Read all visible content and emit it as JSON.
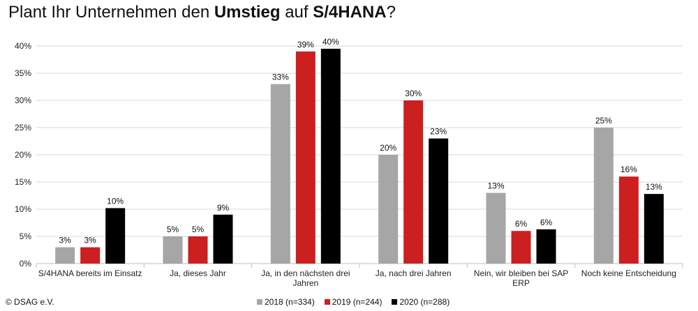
{
  "title": {
    "part1": "Plant Ihr Unternehmen den ",
    "bold1": "Umstieg",
    "part2": " auf ",
    "bold2": "S/4HANA",
    "part3": "?"
  },
  "copyright": "© DSAG e.V.",
  "chart_data": {
    "type": "bar",
    "categories": [
      [
        "S/4HANA bereits im Einsatz"
      ],
      [
        "Ja, dieses Jahr"
      ],
      [
        "Ja, in den nächsten drei",
        "Jahren"
      ],
      [
        "Ja, nach drei Jahren"
      ],
      [
        "Nein, wir bleiben bei SAP",
        "ERP"
      ],
      [
        "Noch keine Entscheidung"
      ]
    ],
    "series": [
      {
        "name": "2018 (n=334)",
        "color": "#a6a6a6",
        "values": [
          3,
          5,
          33,
          20,
          13,
          25
        ],
        "labels": [
          "3%",
          "5%",
          "33%",
          "20%",
          "13%",
          "25%"
        ]
      },
      {
        "name": "2019 (n=244)",
        "color": "#cc1f1f",
        "values": [
          3,
          5,
          39,
          30,
          6,
          16
        ],
        "labels": [
          "3%",
          "5%",
          "39%",
          "30%",
          "6%",
          "16%"
        ]
      },
      {
        "name": "2020 (n=288)",
        "color": "#000000",
        "values": [
          10.2,
          9,
          39.5,
          23,
          6.3,
          12.8
        ],
        "labels": [
          "10%",
          "9%",
          "40%",
          "23%",
          "6%",
          "13%"
        ]
      }
    ],
    "yticks": [
      "0%",
      "5%",
      "10%",
      "15%",
      "20%",
      "25%",
      "30%",
      "35%",
      "40%"
    ],
    "ylim": [
      0,
      40
    ],
    "grid": true,
    "legend": "bottom"
  }
}
